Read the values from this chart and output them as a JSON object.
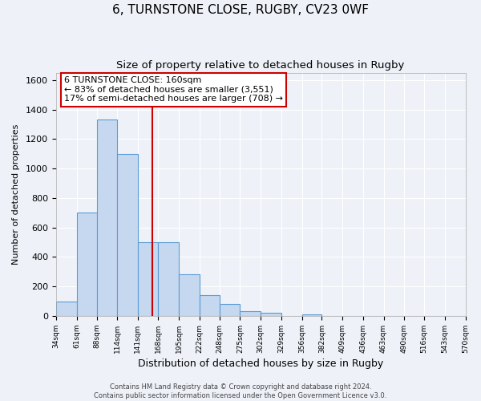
{
  "title": "6, TURNSTONE CLOSE, RUGBY, CV23 0WF",
  "subtitle": "Size of property relative to detached houses in Rugby",
  "xlabel": "Distribution of detached houses by size in Rugby",
  "ylabel": "Number of detached properties",
  "bin_edges": [
    34,
    61,
    88,
    114,
    141,
    168,
    195,
    222,
    248,
    275,
    302,
    329,
    356,
    382,
    409,
    436,
    463,
    490,
    516,
    543,
    570
  ],
  "bar_heights": [
    100,
    700,
    1330,
    1100,
    500,
    500,
    280,
    140,
    80,
    30,
    20,
    0,
    10,
    0,
    0,
    0,
    0,
    0,
    0,
    0
  ],
  "bar_color": "#c5d8f0",
  "bar_edge_color": "#5b9bd5",
  "property_line_x": 160,
  "ylim": [
    0,
    1650
  ],
  "yticks": [
    0,
    200,
    400,
    600,
    800,
    1000,
    1200,
    1400,
    1600
  ],
  "annotation_line1": "6 TURNSTONE CLOSE: 160sqm",
  "annotation_line2": "← 83% of detached houses are smaller (3,551)",
  "annotation_line3": "17% of semi-detached houses are larger (708) →",
  "footer_line1": "Contains HM Land Registry data © Crown copyright and database right 2024.",
  "footer_line2": "Contains public sector information licensed under the Open Government Licence v3.0.",
  "title_fontsize": 11,
  "subtitle_fontsize": 9.5,
  "annotation_fontsize": 8,
  "xlabel_fontsize": 9,
  "ylabel_fontsize": 8,
  "background_color": "#eef2f8",
  "plot_bg_color": "#eef2f8",
  "grid_color": "#ffffff",
  "annotation_box_color": "#cc0000",
  "red_line_color": "#cc0000"
}
